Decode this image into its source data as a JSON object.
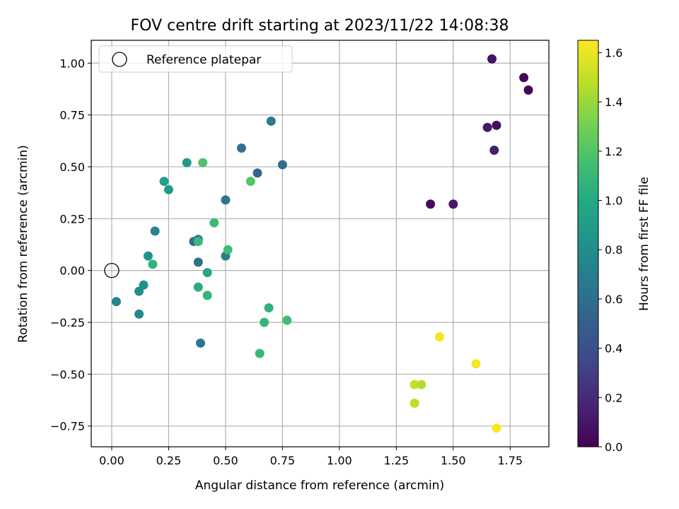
{
  "chart_data": {
    "type": "scatter",
    "title": "FOV centre drift starting at 2023/11/22 14:08:38",
    "xlabel": "Angular distance from reference (arcmin)",
    "ylabel": "Rotation from reference (arcmin)",
    "xlim": [
      -0.09,
      1.92
    ],
    "ylim": [
      -0.85,
      1.11
    ],
    "xticks": [
      0.0,
      0.25,
      0.5,
      0.75,
      1.0,
      1.25,
      1.5,
      1.75
    ],
    "xtick_labels": [
      "0.00",
      "0.25",
      "0.50",
      "0.75",
      "1.00",
      "1.25",
      "1.50",
      "1.75"
    ],
    "yticks": [
      -0.75,
      -0.5,
      -0.25,
      0.0,
      0.25,
      0.5,
      0.75,
      1.0
    ],
    "ytick_labels": [
      "−0.75",
      "−0.50",
      "−0.25",
      "0.00",
      "0.25",
      "0.50",
      "0.75",
      "1.00"
    ],
    "grid": true,
    "legend": {
      "position": "top-left",
      "entries": [
        "Reference platepar"
      ]
    },
    "reference_point": {
      "x": 0.0,
      "y": 0.0,
      "label": "Reference platepar"
    },
    "colorbar": {
      "label": "Hours from first FF file",
      "range": [
        0.0,
        1.65
      ],
      "ticks": [
        0.0,
        0.2,
        0.4,
        0.6,
        0.8,
        1.0,
        1.2,
        1.4,
        1.6
      ],
      "tick_labels": [
        "0.0",
        "0.2",
        "0.4",
        "0.6",
        "0.8",
        "1.0",
        "1.2",
        "1.4",
        "1.6"
      ],
      "colormap": "viridis"
    },
    "points": [
      {
        "x": 1.67,
        "y": 1.02,
        "c": 0.08
      },
      {
        "x": 1.81,
        "y": 0.93,
        "c": 0.03
      },
      {
        "x": 1.83,
        "y": 0.87,
        "c": 0.02
      },
      {
        "x": 1.65,
        "y": 0.69,
        "c": 0.1
      },
      {
        "x": 1.69,
        "y": 0.7,
        "c": 0.06
      },
      {
        "x": 1.68,
        "y": 0.58,
        "c": 0.14
      },
      {
        "x": 1.4,
        "y": 0.32,
        "c": 0.05
      },
      {
        "x": 1.5,
        "y": 0.32,
        "c": 0.12
      },
      {
        "x": 0.7,
        "y": 0.72,
        "c": 0.68
      },
      {
        "x": 0.57,
        "y": 0.59,
        "c": 0.62
      },
      {
        "x": 0.64,
        "y": 0.47,
        "c": 0.56
      },
      {
        "x": 0.75,
        "y": 0.51,
        "c": 0.58
      },
      {
        "x": 0.5,
        "y": 0.34,
        "c": 0.64
      },
      {
        "x": 0.33,
        "y": 0.52,
        "c": 0.88
      },
      {
        "x": 0.4,
        "y": 0.52,
        "c": 1.18
      },
      {
        "x": 0.61,
        "y": 0.43,
        "c": 1.2
      },
      {
        "x": 0.23,
        "y": 0.43,
        "c": 0.94
      },
      {
        "x": 0.25,
        "y": 0.39,
        "c": 0.9
      },
      {
        "x": 0.45,
        "y": 0.23,
        "c": 1.12
      },
      {
        "x": 0.19,
        "y": 0.19,
        "c": 0.74
      },
      {
        "x": 0.36,
        "y": 0.14,
        "c": 0.6
      },
      {
        "x": 0.38,
        "y": 0.15,
        "c": 0.66
      },
      {
        "x": 0.38,
        "y": 0.14,
        "c": 1.1
      },
      {
        "x": 0.5,
        "y": 0.07,
        "c": 0.7
      },
      {
        "x": 0.51,
        "y": 0.1,
        "c": 1.14
      },
      {
        "x": 0.16,
        "y": 0.07,
        "c": 0.84
      },
      {
        "x": 0.18,
        "y": 0.03,
        "c": 1.06
      },
      {
        "x": 0.38,
        "y": 0.04,
        "c": 0.62
      },
      {
        "x": 0.42,
        "y": -0.01,
        "c": 1.0
      },
      {
        "x": 0.14,
        "y": -0.07,
        "c": 0.82
      },
      {
        "x": 0.12,
        "y": -0.1,
        "c": 0.8
      },
      {
        "x": 0.38,
        "y": -0.08,
        "c": 1.02
      },
      {
        "x": 0.42,
        "y": -0.12,
        "c": 1.08
      },
      {
        "x": 0.02,
        "y": -0.15,
        "c": 0.74
      },
      {
        "x": 0.12,
        "y": -0.21,
        "c": 0.78
      },
      {
        "x": 0.69,
        "y": -0.18,
        "c": 1.06
      },
      {
        "x": 0.77,
        "y": -0.24,
        "c": 1.14
      },
      {
        "x": 0.67,
        "y": -0.25,
        "c": 1.08
      },
      {
        "x": 0.39,
        "y": -0.35,
        "c": 0.66
      },
      {
        "x": 0.65,
        "y": -0.4,
        "c": 1.1
      },
      {
        "x": 1.44,
        "y": -0.32,
        "c": 1.62
      },
      {
        "x": 1.6,
        "y": -0.45,
        "c": 1.63
      },
      {
        "x": 1.33,
        "y": -0.55,
        "c": 1.5
      },
      {
        "x": 1.36,
        "y": -0.55,
        "c": 1.46
      },
      {
        "x": 1.33,
        "y": -0.64,
        "c": 1.48
      },
      {
        "x": 1.69,
        "y": -0.76,
        "c": 1.64
      }
    ]
  }
}
